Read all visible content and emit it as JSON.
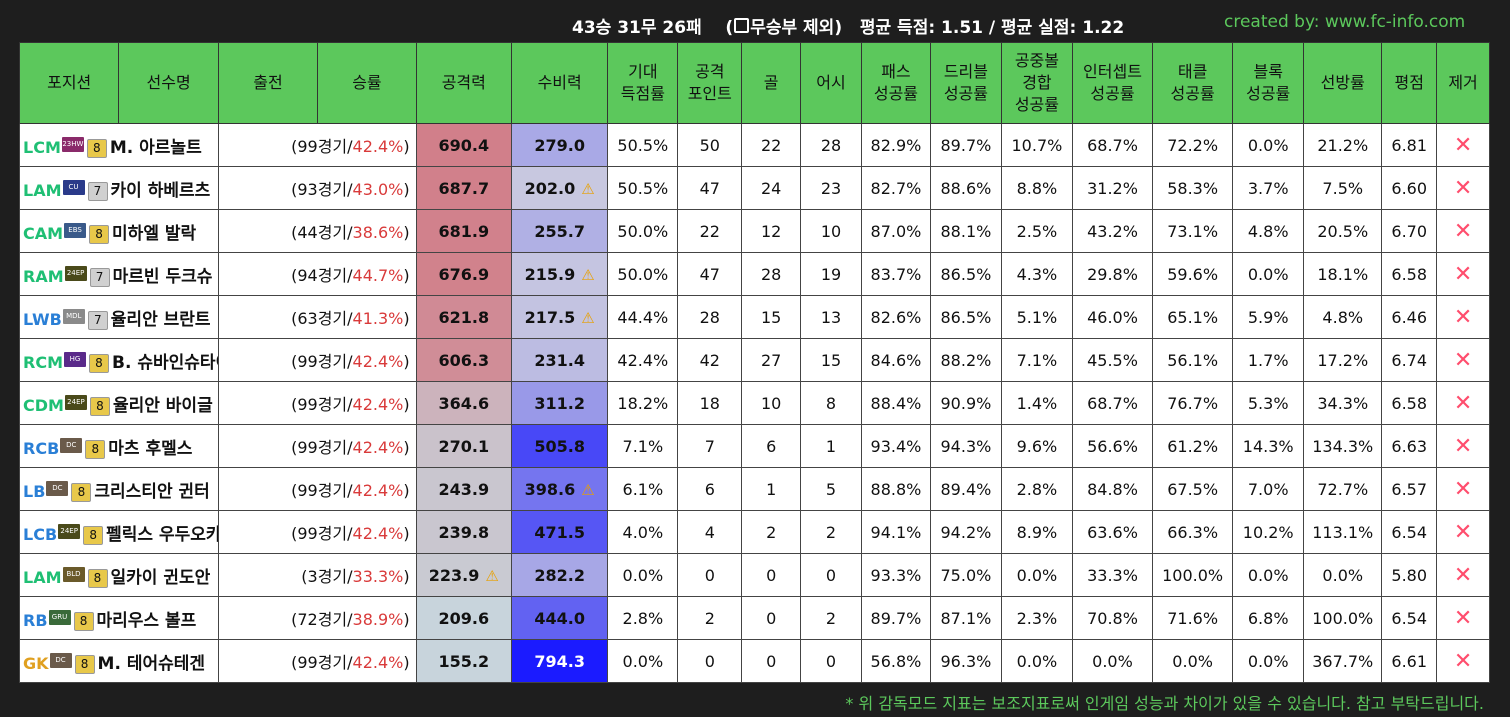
{
  "summary": {
    "record": "43승 31무 26패",
    "excl_open": "(",
    "excl_text": "무승부 제외)",
    "avg_text": "평균 득점: 1.51 / 평균 실점: 1.22"
  },
  "credit": "created by: www.fc-info.com",
  "columns": [
    "포지션",
    "선수명",
    "출전",
    "승률",
    "공격력",
    "수비력",
    "기대 득점률",
    "공격 포인트",
    "골",
    "어시",
    "패스 성공률",
    "드리블 성공률",
    "공중볼 경합 성공률",
    "인터셉트 성공률",
    "태클 성공률",
    "블록 성공률",
    "선방률",
    "평점",
    "제거"
  ],
  "header": {
    "position": "포지션",
    "name": "선수명",
    "games": "출전",
    "winrate": "승률",
    "attack": "공격력",
    "defense": "수비력",
    "xg": [
      "기대",
      "득점률"
    ],
    "ap": [
      "공격",
      "포인트"
    ],
    "goals": "골",
    "assists": "어시",
    "pass": [
      "패스",
      "성공률"
    ],
    "dribble": [
      "드리블",
      "성공률"
    ],
    "aerial": [
      "공중볼",
      "경합",
      "성공률"
    ],
    "intercept": [
      "인터셉트",
      "성공률"
    ],
    "tackle": [
      "태클",
      "성공률"
    ],
    "block": [
      "블록",
      "성공률"
    ],
    "save": "선방률",
    "rating": "평점",
    "remove": "제거"
  },
  "rows": [
    {
      "pos": "LCM",
      "pos_color": "#1fbf74",
      "season": "23HW",
      "season_color": "#8a2a6a",
      "level": "8",
      "level_color": "#e8c84a",
      "name": "M. 아르놀트",
      "games": "99",
      "games_suffix": "경기/",
      "winrate": "42.4%",
      "attack": "690.4",
      "atk_level": 1.0,
      "defense": "279.0",
      "def_level": 0.18,
      "def_warn": false,
      "atk_warn": false,
      "xg": "50.5%",
      "ap": "50",
      "goals": "22",
      "assists": "28",
      "pass": "82.9%",
      "dribble": "89.7%",
      "aerial": "10.7%",
      "intercept": "68.7%",
      "tackle": "72.2%",
      "block": "0.0%",
      "save": "21.2%",
      "rating": "6.81"
    },
    {
      "pos": "LAM",
      "pos_color": "#1fbf74",
      "season": "CU",
      "season_color": "#2a3a8a",
      "level": "7",
      "level_color": "#d0d0d0",
      "name": "카이 하베르츠",
      "games": "93",
      "games_suffix": "경기/",
      "winrate": "43.0%",
      "attack": "687.7",
      "atk_level": 0.99,
      "defense": "202.0",
      "def_level": 0.0,
      "def_warn": true,
      "atk_warn": false,
      "xg": "50.5%",
      "ap": "47",
      "goals": "24",
      "assists": "23",
      "pass": "82.7%",
      "dribble": "88.6%",
      "aerial": "8.8%",
      "intercept": "31.2%",
      "tackle": "58.3%",
      "block": "3.7%",
      "save": "7.5%",
      "rating": "6.60"
    },
    {
      "pos": "CAM",
      "pos_color": "#1fbf74",
      "season": "EBS",
      "season_color": "#3a5a8a",
      "level": "8",
      "level_color": "#e8c84a",
      "name": "미하엘 발락",
      "games": "44",
      "games_suffix": "경기/",
      "winrate": "38.6%",
      "attack": "681.9",
      "atk_level": 0.98,
      "defense": "255.7",
      "def_level": 0.14,
      "def_warn": false,
      "atk_warn": false,
      "xg": "50.0%",
      "ap": "22",
      "goals": "12",
      "assists": "10",
      "pass": "87.0%",
      "dribble": "88.1%",
      "aerial": "2.5%",
      "intercept": "43.2%",
      "tackle": "73.1%",
      "block": "4.8%",
      "save": "20.5%",
      "rating": "6.70"
    },
    {
      "pos": "RAM",
      "pos_color": "#1fbf74",
      "season": "24EP",
      "season_color": "#4a4a1a",
      "level": "7",
      "level_color": "#d0d0d0",
      "name": "마르빈 두크슈",
      "games": "94",
      "games_suffix": "경기/",
      "winrate": "44.7%",
      "attack": "676.9",
      "atk_level": 0.97,
      "defense": "215.9",
      "def_level": 0.02,
      "def_warn": true,
      "atk_warn": false,
      "xg": "50.0%",
      "ap": "47",
      "goals": "28",
      "assists": "19",
      "pass": "83.7%",
      "dribble": "86.5%",
      "aerial": "4.3%",
      "intercept": "29.8%",
      "tackle": "59.6%",
      "block": "0.0%",
      "save": "18.1%",
      "rating": "6.58"
    },
    {
      "pos": "LWB",
      "pos_color": "#2a7fd6",
      "season": "MDL",
      "season_color": "#8a8a8a",
      "level": "7",
      "level_color": "#d0d0d0",
      "name": "율리안 브란트",
      "games": "63",
      "games_suffix": "경기/",
      "winrate": "41.3%",
      "attack": "621.8",
      "atk_level": 0.87,
      "defense": "217.5",
      "def_level": 0.03,
      "def_warn": true,
      "atk_warn": false,
      "xg": "44.4%",
      "ap": "28",
      "goals": "15",
      "assists": "13",
      "pass": "82.6%",
      "dribble": "86.5%",
      "aerial": "5.1%",
      "intercept": "46.0%",
      "tackle": "65.1%",
      "block": "5.9%",
      "save": "4.8%",
      "rating": "6.46"
    },
    {
      "pos": "RCM",
      "pos_color": "#1fbf74",
      "season": "HG",
      "season_color": "#5a2a8a",
      "level": "8",
      "level_color": "#e8c84a",
      "name": "B. 슈바인슈타이거",
      "games": "99",
      "games_suffix": "경기/",
      "winrate": "42.4%",
      "attack": "606.3",
      "atk_level": 0.84,
      "defense": "231.4",
      "def_level": 0.07,
      "def_warn": false,
      "atk_warn": false,
      "xg": "42.4%",
      "ap": "42",
      "goals": "27",
      "assists": "15",
      "pass": "84.6%",
      "dribble": "88.2%",
      "aerial": "7.1%",
      "intercept": "45.5%",
      "tackle": "56.1%",
      "block": "1.7%",
      "save": "17.2%",
      "rating": "6.74"
    },
    {
      "pos": "CDM",
      "pos_color": "#1fbf74",
      "season": "24EP",
      "season_color": "#4a4a1a",
      "level": "8",
      "level_color": "#e8c84a",
      "name": "율리안 바이글",
      "games": "99",
      "games_suffix": "경기/",
      "winrate": "42.4%",
      "attack": "364.6",
      "atk_level": 0.39,
      "defense": "311.2",
      "def_level": 0.27,
      "def_warn": false,
      "atk_warn": false,
      "xg": "18.2%",
      "ap": "18",
      "goals": "10",
      "assists": "8",
      "pass": "88.4%",
      "dribble": "90.9%",
      "aerial": "1.4%",
      "intercept": "68.7%",
      "tackle": "76.7%",
      "block": "5.3%",
      "save": "34.3%",
      "rating": "6.58"
    },
    {
      "pos": "RCB",
      "pos_color": "#2a7fd6",
      "season": "DC",
      "season_color": "#6a5a4a",
      "level": "8",
      "level_color": "#e8c84a",
      "name": "마츠 후멜스",
      "games": "99",
      "games_suffix": "경기/",
      "winrate": "42.4%",
      "attack": "270.1",
      "atk_level": 0.21,
      "defense": "505.8",
      "def_level": 0.74,
      "def_warn": false,
      "atk_warn": false,
      "xg": "7.1%",
      "ap": "7",
      "goals": "6",
      "assists": "1",
      "pass": "93.4%",
      "dribble": "94.3%",
      "aerial": "9.6%",
      "intercept": "56.6%",
      "tackle": "61.2%",
      "block": "14.3%",
      "save": "134.3%",
      "rating": "6.63"
    },
    {
      "pos": "LB",
      "pos_color": "#2a7fd6",
      "season": "DC",
      "season_color": "#6a5a4a",
      "level": "8",
      "level_color": "#e8c84a",
      "name": "크리스티안 귄터",
      "games": "99",
      "games_suffix": "경기/",
      "winrate": "42.4%",
      "attack": "243.9",
      "atk_level": 0.16,
      "defense": "398.6",
      "def_level": 0.48,
      "def_warn": true,
      "atk_warn": false,
      "xg": "6.1%",
      "ap": "6",
      "goals": "1",
      "assists": "5",
      "pass": "88.8%",
      "dribble": "89.4%",
      "aerial": "2.8%",
      "intercept": "84.8%",
      "tackle": "67.5%",
      "block": "7.0%",
      "save": "72.7%",
      "rating": "6.57"
    },
    {
      "pos": "LCB",
      "pos_color": "#2a7fd6",
      "season": "24EP",
      "season_color": "#4a4a1a",
      "level": "8",
      "level_color": "#e8c84a",
      "name": "펠릭스 우두오카이",
      "games": "99",
      "games_suffix": "경기/",
      "winrate": "42.4%",
      "attack": "239.8",
      "atk_level": 0.16,
      "defense": "471.5",
      "def_level": 0.66,
      "def_warn": false,
      "atk_warn": false,
      "xg": "4.0%",
      "ap": "4",
      "goals": "2",
      "assists": "2",
      "pass": "94.1%",
      "dribble": "94.2%",
      "aerial": "8.9%",
      "intercept": "63.6%",
      "tackle": "66.3%",
      "block": "10.2%",
      "save": "113.1%",
      "rating": "6.54"
    },
    {
      "pos": "LAM",
      "pos_color": "#1fbf74",
      "season": "BLD",
      "season_color": "#6a5a2a",
      "level": "8",
      "level_color": "#e8c84a",
      "name": "일카이 귄도안",
      "games": "3",
      "games_suffix": "경기/",
      "winrate": "33.3%",
      "attack": "223.9",
      "atk_level": 0.12,
      "defense": "282.2",
      "def_level": 0.19,
      "def_warn": false,
      "atk_warn": true,
      "xg": "0.0%",
      "ap": "0",
      "goals": "0",
      "assists": "0",
      "pass": "93.3%",
      "dribble": "75.0%",
      "aerial": "0.0%",
      "intercept": "33.3%",
      "tackle": "100.0%",
      "block": "0.0%",
      "save": "0.0%",
      "rating": "5.80"
    },
    {
      "pos": "RB",
      "pos_color": "#2a7fd6",
      "season": "GRU",
      "season_color": "#3a6a3a",
      "level": "8",
      "level_color": "#e8c84a",
      "name": "마리우스 볼프",
      "games": "72",
      "games_suffix": "경기/",
      "winrate": "38.9%",
      "attack": "209.6",
      "atk_level": 0.0,
      "defense": "444.0",
      "def_level": 0.59,
      "def_warn": false,
      "atk_warn": false,
      "xg": "2.8%",
      "ap": "2",
      "goals": "0",
      "assists": "2",
      "pass": "89.7%",
      "dribble": "87.1%",
      "aerial": "2.3%",
      "intercept": "70.8%",
      "tackle": "71.6%",
      "block": "6.8%",
      "save": "100.0%",
      "rating": "6.54"
    },
    {
      "pos": "GK",
      "pos_color": "#e0a020",
      "season": "DC",
      "season_color": "#6a5a4a",
      "level": "8",
      "level_color": "#e8c84a",
      "name": "M. 테어슈테겐",
      "games": "99",
      "games_suffix": "경기/",
      "winrate": "42.4%",
      "attack": "155.2",
      "atk_level": 0.0,
      "defense": "794.3",
      "def_level": 1.0,
      "def_warn": false,
      "atk_warn": false,
      "xg": "0.0%",
      "ap": "0",
      "goals": "0",
      "assists": "0",
      "pass": "56.8%",
      "dribble": "96.3%",
      "aerial": "0.0%",
      "intercept": "0.0%",
      "tackle": "0.0%",
      "block": "0.0%",
      "save": "367.7%",
      "rating": "6.61"
    }
  ],
  "warn_icon": "warning-icon",
  "remove_icon": "close-x-icon",
  "remove_glyph": "✕",
  "warn_glyph": "⚠",
  "footnote": "* 위 감독모드 지표는 보조지표로써 인게임 성능과 차이가 있을 수 있습니다. 참고 부탁드립니다.",
  "colors": {
    "header_bg": "#5cc85c",
    "credit": "#5cc85c",
    "attack_high": "#d17f8a",
    "attack_low": "#c8d4dc",
    "defense_low": "#c8c8e0",
    "defense_high": "#1b1bff",
    "winrate": "#d93a3a",
    "remove": "#ff4d6d"
  }
}
